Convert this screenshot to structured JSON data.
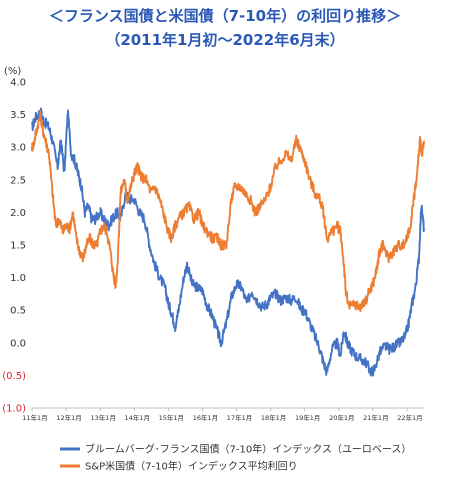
{
  "title_line1": "＜フランス国債と米国債（7-10年）の利回り推移＞",
  "title_line2": "（2011年1月初～2022年6月末）",
  "chart_data": {
    "type": "line",
    "title": "＜フランス国債と米国債（7-10年）の利回り推移＞",
    "subtitle": "（2011年1月初～2022年6月末）",
    "ylabel": "(%)",
    "ylim": [
      -1.0,
      4.0
    ],
    "yticks": [
      {
        "value": 4.0,
        "label": "4.0"
      },
      {
        "value": 3.5,
        "label": "3.5"
      },
      {
        "value": 3.0,
        "label": "3.0"
      },
      {
        "value": 2.5,
        "label": "2.5"
      },
      {
        "value": 2.0,
        "label": "2.0"
      },
      {
        "value": 1.5,
        "label": "1.5"
      },
      {
        "value": 1.0,
        "label": "1.0"
      },
      {
        "value": 0.5,
        "label": "0.5"
      },
      {
        "value": 0.0,
        "label": "0.0"
      },
      {
        "value": -0.5,
        "label": "(0.5)"
      },
      {
        "value": -1.0,
        "label": "(1.0)"
      }
    ],
    "xlim": [
      2011.0,
      2022.5
    ],
    "xticks": [
      {
        "value": 2011,
        "label": "11年1月"
      },
      {
        "value": 2012,
        "label": "12年1月"
      },
      {
        "value": 2013,
        "label": "13年1月"
      },
      {
        "value": 2014,
        "label": "14年1月"
      },
      {
        "value": 2015,
        "label": "15年1月"
      },
      {
        "value": 2016,
        "label": "16年1月"
      },
      {
        "value": 2017,
        "label": "17年1月"
      },
      {
        "value": 2018,
        "label": "18年1月"
      },
      {
        "value": 2019,
        "label": "19年1月"
      },
      {
        "value": 2020,
        "label": "20年1月"
      },
      {
        "value": 2021,
        "label": "21年1月"
      },
      {
        "value": 2022,
        "label": "22年1月"
      }
    ],
    "grid": false,
    "legend_position": "bottom",
    "series": [
      {
        "name": "ブルームバーグ･フランス国債（7-10年）インデックス（ユーロベース）",
        "color": "#4472c4",
        "x": [
          2011.0,
          2011.1,
          2011.25,
          2011.35,
          2011.5,
          2011.6,
          2011.75,
          2011.85,
          2011.95,
          2012.05,
          2012.15,
          2012.25,
          2012.35,
          2012.45,
          2012.55,
          2012.65,
          2012.75,
          2012.85,
          2013.0,
          2013.1,
          2013.25,
          2013.35,
          2013.5,
          2013.6,
          2013.75,
          2013.85,
          2014.0,
          2014.15,
          2014.3,
          2014.45,
          2014.6,
          2014.75,
          2014.9,
          2015.0,
          2015.1,
          2015.2,
          2015.3,
          2015.45,
          2015.55,
          2015.7,
          2015.85,
          2016.0,
          2016.15,
          2016.3,
          2016.45,
          2016.55,
          2016.7,
          2016.85,
          2017.0,
          2017.15,
          2017.3,
          2017.45,
          2017.6,
          2017.75,
          2017.9,
          2018.0,
          2018.15,
          2018.3,
          2018.45,
          2018.6,
          2018.75,
          2018.9,
          2019.0,
          2019.15,
          2019.3,
          2019.45,
          2019.55,
          2019.65,
          2019.8,
          2019.95,
          2020.05,
          2020.15,
          2020.25,
          2020.35,
          2020.5,
          2020.65,
          2020.8,
          2020.95,
          2021.05,
          2021.2,
          2021.35,
          2021.5,
          2021.65,
          2021.8,
          2021.95,
          2022.05,
          2022.15,
          2022.25,
          2022.35,
          2022.42,
          2022.5
        ],
        "values": [
          3.3,
          3.45,
          3.55,
          3.4,
          3.3,
          3.1,
          2.7,
          3.1,
          2.6,
          3.55,
          2.9,
          2.8,
          2.6,
          2.4,
          2.0,
          2.1,
          1.9,
          1.9,
          2.0,
          1.9,
          1.8,
          1.9,
          2.0,
          1.9,
          2.3,
          2.2,
          2.2,
          2.0,
          1.9,
          1.5,
          1.2,
          1.0,
          0.85,
          0.6,
          0.45,
          0.25,
          0.5,
          1.0,
          1.2,
          0.9,
          0.85,
          0.8,
          0.55,
          0.4,
          0.15,
          0.0,
          0.3,
          0.7,
          0.9,
          0.85,
          0.6,
          0.8,
          0.65,
          0.55,
          0.6,
          0.7,
          0.75,
          0.65,
          0.7,
          0.65,
          0.7,
          0.5,
          0.5,
          0.3,
          0.1,
          -0.1,
          -0.3,
          -0.45,
          -0.1,
          0.0,
          -0.2,
          0.2,
          0.0,
          -0.1,
          -0.2,
          -0.25,
          -0.3,
          -0.45,
          -0.4,
          -0.15,
          -0.05,
          -0.1,
          -0.05,
          0.0,
          0.1,
          0.3,
          0.6,
          0.85,
          1.3,
          2.1,
          1.75
        ]
      },
      {
        "name": "S&P米国債（7-10年）インデックス平均利回り",
        "color": "#ed7d31",
        "x": [
          2011.0,
          2011.05,
          2011.15,
          2011.25,
          2011.3,
          2011.4,
          2011.5,
          2011.6,
          2011.7,
          2011.8,
          2011.9,
          2012.0,
          2012.1,
          2012.2,
          2012.3,
          2012.4,
          2012.5,
          2012.6,
          2012.7,
          2012.8,
          2012.9,
          2013.0,
          2013.1,
          2013.2,
          2013.3,
          2013.4,
          2013.45,
          2013.5,
          2013.6,
          2013.7,
          2013.8,
          2013.9,
          2014.0,
          2014.1,
          2014.2,
          2014.35,
          2014.5,
          2014.6,
          2014.75,
          2014.85,
          2015.0,
          2015.1,
          2015.2,
          2015.3,
          2015.45,
          2015.6,
          2015.75,
          2015.9,
          2016.0,
          2016.15,
          2016.3,
          2016.45,
          2016.55,
          2016.7,
          2016.85,
          2016.95,
          2017.1,
          2017.25,
          2017.4,
          2017.55,
          2017.7,
          2017.85,
          2018.0,
          2018.15,
          2018.3,
          2018.45,
          2018.6,
          2018.75,
          2018.85,
          2019.0,
          2019.15,
          2019.3,
          2019.45,
          2019.55,
          2019.65,
          2019.8,
          2019.95,
          2020.05,
          2020.15,
          2020.2,
          2020.3,
          2020.45,
          2020.6,
          2020.75,
          2020.9,
          2021.0,
          2021.1,
          2021.2,
          2021.3,
          2021.45,
          2021.6,
          2021.75,
          2021.9,
          2022.0,
          2022.1,
          2022.2,
          2022.3,
          2022.38,
          2022.45,
          2022.5
        ],
        "values": [
          3.0,
          3.05,
          3.3,
          3.5,
          3.3,
          3.1,
          2.9,
          2.3,
          1.8,
          1.9,
          1.7,
          1.8,
          1.75,
          2.0,
          1.6,
          1.4,
          1.3,
          1.5,
          1.6,
          1.5,
          1.5,
          1.7,
          1.8,
          1.7,
          1.4,
          1.0,
          0.9,
          1.1,
          2.3,
          2.5,
          2.2,
          2.4,
          2.6,
          2.7,
          2.55,
          2.5,
          2.3,
          2.4,
          2.2,
          2.0,
          1.7,
          1.6,
          1.8,
          1.9,
          2.0,
          2.1,
          1.9,
          2.0,
          1.8,
          1.7,
          1.6,
          1.6,
          1.5,
          1.5,
          2.2,
          2.4,
          2.4,
          2.3,
          2.2,
          2.0,
          2.1,
          2.2,
          2.4,
          2.7,
          2.8,
          2.9,
          2.8,
          3.1,
          3.0,
          2.8,
          2.5,
          2.3,
          2.2,
          2.0,
          1.6,
          1.7,
          1.8,
          1.7,
          1.2,
          0.8,
          0.55,
          0.6,
          0.55,
          0.6,
          0.8,
          0.9,
          1.1,
          1.4,
          1.5,
          1.3,
          1.4,
          1.5,
          1.5,
          1.6,
          1.8,
          2.2,
          2.6,
          3.1,
          2.9,
          3.1
        ]
      }
    ]
  }
}
